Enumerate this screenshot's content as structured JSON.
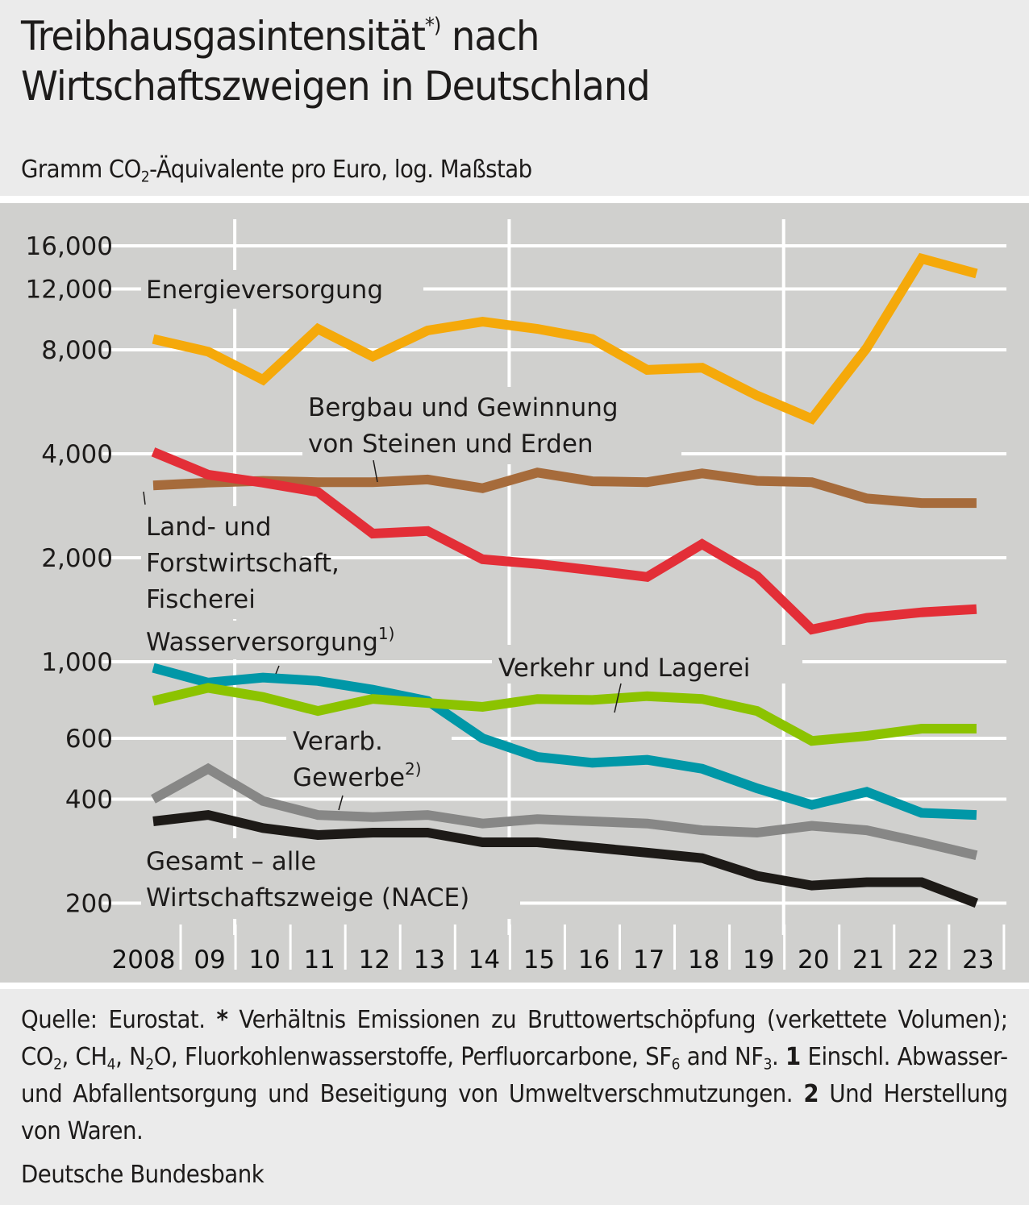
{
  "header": {
    "title_line1": "Treibhausgasintensität",
    "title_sup": "*)",
    "title_line1_end": "nach",
    "title_line2": "Wirtschaftszweigen in Deutschland",
    "subtitle_pre": "Gramm CO",
    "subtitle_sub": "2",
    "subtitle_post": "-Äquivalente pro Euro, log. Maßstab"
  },
  "chart_data": {
    "type": "line",
    "title": "Treibhausgasintensität*) nach Wirtschaftszweigen in Deutschland",
    "subtitle": "Gramm CO2-Äquivalente pro Euro, log. Maßstab",
    "xlabel": "",
    "ylabel": "Gramm CO2-Äquivalente pro Euro",
    "yscale": "log",
    "ylim": [
      200,
      16000
    ],
    "grid": true,
    "x": [
      2008,
      2009,
      2010,
      2011,
      2012,
      2013,
      2014,
      2015,
      2016,
      2017,
      2018,
      2019,
      2020,
      2021,
      2022,
      2023
    ],
    "x_tick_labels": [
      "2008",
      "09",
      "10",
      "11",
      "12",
      "13",
      "14",
      "15",
      "16",
      "17",
      "18",
      "19",
      "20",
      "21",
      "22",
      "23"
    ],
    "y_ticks": [
      200,
      400,
      600,
      1000,
      2000,
      4000,
      8000,
      12000,
      16000
    ],
    "y_tick_labels": [
      "200",
      "400",
      "600",
      "1,000",
      "2,000",
      "4,000",
      "8,000",
      "12,000",
      "16,000"
    ],
    "series": [
      {
        "name": "Energieversorgung",
        "color": "#f5a90a",
        "values": [
          8600,
          7900,
          6550,
          9200,
          7650,
          9100,
          9650,
          9200,
          8600,
          7000,
          7100,
          5900,
          5050,
          8100,
          14700,
          13300
        ]
      },
      {
        "name": "Bergbau und Gewinnung von Steinen und Erden",
        "color": "#a66b3b",
        "values": [
          3240,
          3300,
          3340,
          3310,
          3310,
          3370,
          3180,
          3530,
          3330,
          3310,
          3510,
          3340,
          3310,
          2970,
          2880,
          2880
        ]
      },
      {
        "name": "Land- und Forstwirtschaft, Fischerei",
        "color": "#e32e37",
        "values": [
          4050,
          3480,
          3300,
          3100,
          2350,
          2390,
          1980,
          1920,
          1840,
          1760,
          2190,
          1770,
          1240,
          1340,
          1390,
          1420
        ]
      },
      {
        "name": "Wasserversorgung 1)",
        "color": "#0097a7",
        "values": [
          960,
          870,
          900,
          880,
          830,
          770,
          600,
          530,
          510,
          520,
          490,
          430,
          385,
          420,
          365,
          360
        ]
      },
      {
        "name": "Verkehr und Lagerei",
        "color": "#8cc300",
        "values": [
          770,
          840,
          790,
          720,
          780,
          760,
          740,
          780,
          775,
          795,
          780,
          720,
          590,
          610,
          640,
          640
        ]
      },
      {
        "name": "Verarb. Gewerbe 2)",
        "color": "#878786",
        "values": [
          400,
          490,
          395,
          360,
          355,
          360,
          340,
          350,
          345,
          340,
          325,
          320,
          335,
          325,
          300,
          275
        ]
      },
      {
        "name": "Gesamt – alle Wirtschaftszweige (NACE)",
        "color": "#1d1a17",
        "values": [
          345,
          360,
          330,
          315,
          320,
          320,
          300,
          300,
          290,
          280,
          270,
          240,
          225,
          230,
          230,
          200
        ]
      }
    ],
    "annotations": [
      {
        "series": 0,
        "lines": [
          "Energieversorgung"
        ]
      },
      {
        "series": 1,
        "lines": [
          "Bergbau und Gewinnung",
          "von Steinen und Erden"
        ]
      },
      {
        "series": 2,
        "lines": [
          "Land- und",
          "Forstwirtschaft,",
          "Fischerei"
        ]
      },
      {
        "series": 3,
        "lines": [
          "Wasserversorgung"
        ],
        "sup": "1)"
      },
      {
        "series": 4,
        "lines": [
          "Verkehr und Lagerei"
        ]
      },
      {
        "series": 5,
        "lines": [
          "Verarb.",
          "Gewerbe"
        ],
        "sup": "2)"
      },
      {
        "series": 6,
        "lines": [
          "Gesamt – alle",
          "Wirtschaftszweige (NACE)"
        ]
      }
    ]
  },
  "footer": {
    "footnote_parts": [
      {
        "t": "Quelle: Eurostat. "
      },
      {
        "b": "*"
      },
      {
        "t": " Verhältnis Emissionen zu Bruttowertschöpfung (verkettete Volumen); CO"
      },
      {
        "s": "2"
      },
      {
        "t": ", CH"
      },
      {
        "s": "4"
      },
      {
        "t": ", N"
      },
      {
        "s": "2"
      },
      {
        "t": "O, Fluorkohlenwasserstoffe, Perfluorcarbone, SF"
      },
      {
        "s": "6"
      },
      {
        "t": " and NF"
      },
      {
        "s": "3"
      },
      {
        "t": ". "
      },
      {
        "b": "1"
      },
      {
        "t": " Einschl. Abwasser- und Abfallentsorgung und Beseitigung von Umweltverschmutzungen. "
      },
      {
        "b": "2"
      },
      {
        "t": " Und Herstellung von Waren."
      }
    ],
    "source": "Deutsche Bundesbank"
  }
}
